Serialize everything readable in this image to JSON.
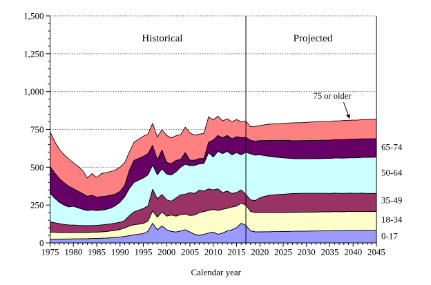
{
  "chart_data": {
    "type": "area",
    "stacked": true,
    "title": "",
    "xlabel": "Calendar year",
    "ylabel": "",
    "ylim": [
      0,
      1500
    ],
    "ytick_step": 250,
    "ytick_minor_step": 50,
    "ytick_labels": [
      "0",
      "250",
      "500",
      "750",
      "1,000",
      "1,250",
      "1,500"
    ],
    "grid": "dotted-horizontal",
    "legend_position": "right-edge-labels",
    "x_start": 1975,
    "x_end": 2045,
    "xtick_step": 5,
    "xtick_labels": [
      "1975",
      "1980",
      "1985",
      "1990",
      "1995",
      "2000",
      "2005",
      "2010",
      "2015",
      "2020",
      "2025",
      "2030",
      "2035",
      "2040",
      "2045"
    ],
    "years": [
      1975,
      1976,
      1977,
      1978,
      1979,
      1980,
      1981,
      1982,
      1983,
      1984,
      1985,
      1986,
      1987,
      1988,
      1989,
      1990,
      1991,
      1992,
      1993,
      1994,
      1995,
      1996,
      1997,
      1998,
      1999,
      2000,
      2001,
      2002,
      2003,
      2004,
      2005,
      2006,
      2007,
      2008,
      2009,
      2010,
      2011,
      2012,
      2013,
      2014,
      2015,
      2016,
      2017,
      2018,
      2019,
      2020,
      2021,
      2022,
      2023,
      2024,
      2025,
      2026,
      2027,
      2028,
      2029,
      2030,
      2031,
      2032,
      2033,
      2034,
      2035,
      2036,
      2037,
      2038,
      2039,
      2040,
      2041,
      2042,
      2043,
      2044,
      2045
    ],
    "series": [
      {
        "name": "0-17",
        "color": "#9999FF",
        "right_label": "0-17",
        "right_label_value": 45,
        "values": [
          24,
          25,
          25,
          26,
          26,
          27,
          27,
          28,
          28,
          29,
          30,
          31,
          32,
          34,
          36,
          39,
          43,
          48,
          54,
          58,
          62,
          77,
          130,
          87,
          112,
          87,
          76,
          72,
          79,
          87,
          72,
          57,
          50,
          57,
          65,
          72,
          57,
          65,
          79,
          87,
          101,
          130,
          116,
          80,
          73,
          73,
          74,
          74,
          75,
          75,
          76,
          76,
          77,
          77,
          78,
          78,
          79,
          79,
          80,
          80,
          80,
          81,
          81,
          81,
          82,
          82,
          82,
          83,
          83,
          83,
          84
        ]
      },
      {
        "name": "18-34",
        "color": "#FFFFCC",
        "right_label": "18-34",
        "right_label_value": 155,
        "values": [
          46,
          45,
          44,
          43,
          42,
          41,
          41,
          41,
          41,
          41,
          41,
          42,
          43,
          45,
          47,
          50,
          56,
          64,
          66,
          66,
          67,
          68,
          82,
          83,
          93,
          90,
          108,
          105,
          108,
          104,
          109,
          127,
          150,
          150,
          149,
          150,
          157,
          157,
          150,
          150,
          143,
          132,
          134,
          128,
          127,
          127,
          126,
          126,
          125,
          126,
          125,
          125,
          125,
          125,
          125,
          125,
          125,
          125,
          125,
          125,
          125,
          126,
          125,
          125,
          126,
          125,
          125,
          125,
          124,
          124,
          123
        ]
      },
      {
        "name": "35-49",
        "color": "#993366",
        "right_label": "35-49",
        "right_label_value": 283,
        "values": [
          70,
          63,
          58,
          53,
          51,
          50,
          48,
          46,
          45,
          45,
          45,
          46,
          47,
          47,
          48,
          48,
          49,
          68,
          85,
          92,
          98,
          100,
          143,
          122,
          115,
          108,
          92,
          120,
          131,
          131,
          152,
          143,
          149,
          136,
          143,
          128,
          143,
          111,
          114,
          90,
          89,
          88,
          70,
          76,
          80,
          98,
          108,
          114,
          118,
          119,
          121,
          123,
          124,
          125,
          125,
          125,
          124,
          124,
          123,
          123,
          122,
          122,
          122,
          121,
          121,
          121,
          121,
          121,
          120,
          120,
          120
        ]
      },
      {
        "name": "50-64",
        "color": "#CCFFFF",
        "right_label": "50-64",
        "right_label_value": 465,
        "values": [
          190,
          162,
          141,
          128,
          119,
          124,
          116,
          107,
          100,
          103,
          98,
          97,
          99,
          104,
          115,
          133,
          157,
          180,
          195,
          199,
          202,
          205,
          160,
          158,
          170,
          170,
          173,
          173,
          182,
          198,
          177,
          185,
          173,
          182,
          240,
          217,
          248,
          257,
          262,
          255,
          264,
          232,
          280,
          304,
          300,
          284,
          269,
          258,
          250,
          245,
          240,
          236,
          231,
          229,
          228,
          228,
          228,
          229,
          229,
          230,
          231,
          232,
          233,
          233,
          234,
          234,
          235,
          236,
          238,
          239,
          240
        ]
      },
      {
        "name": "65-74",
        "color": "#660066",
        "right_label": "65-74",
        "right_label_value": 634,
        "values": [
          175,
          167,
          157,
          148,
          137,
          116,
          110,
          103,
          94,
          97,
          88,
          90,
          88,
          85,
          77,
          70,
          75,
          120,
          145,
          143,
          143,
          140,
          130,
          98,
          123,
          77,
          75,
          75,
          52,
          77,
          36,
          34,
          35,
          33,
          68,
          113,
          105,
          105,
          105,
          105,
          105,
          113,
          97,
          90,
          92,
          94,
          99,
          105,
          109,
          113,
          116,
          117,
          118,
          119,
          120,
          120,
          121,
          120,
          121,
          121,
          121,
          121,
          121,
          122,
          122,
          123,
          123,
          123,
          122,
          122,
          121
        ]
      },
      {
        "name": "75 or older",
        "color": "#FF8080",
        "right_label": "",
        "right_label_value": null,
        "values": [
          230,
          206,
          193,
          184,
          180,
          172,
          163,
          153,
          120,
          143,
          130,
          152,
          155,
          157,
          158,
          160,
          150,
          120,
          120,
          127,
          133,
          130,
          145,
          152,
          135,
          178,
          170,
          163,
          164,
          168,
          181,
          166,
          161,
          166,
          168,
          132,
          128,
          111,
          110,
          113,
          113,
          105,
          108,
          90,
          98,
          99,
          104,
          107,
          109,
          110,
          112,
          115,
          118,
          119,
          118,
          121,
          122,
          123,
          123,
          123,
          123,
          124,
          124,
          127,
          125,
          126,
          125,
          127,
          128,
          128,
          130
        ]
      }
    ],
    "divider_year": 2017,
    "annotations": {
      "historical_label": "Historical",
      "projected_label": "Projected",
      "callout_label": "75 or older",
      "callout_target_year": 2039
    },
    "line_color": "#000000",
    "axis_color": "#000000",
    "grid_color": "#666666"
  },
  "labels": {
    "x_axis_title": "Calendar year"
  }
}
